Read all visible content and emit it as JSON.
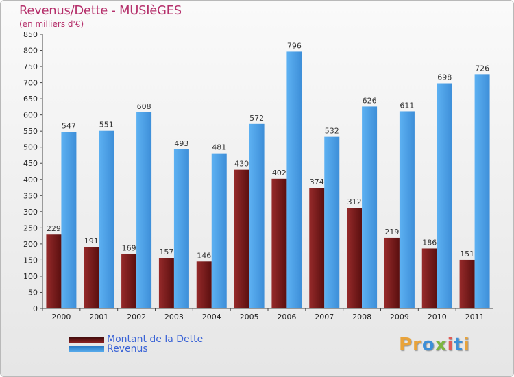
{
  "chart_data": {
    "type": "bar",
    "title": "Revenus/Dette - MUSIèGES",
    "subtitle": "(en milliers d'€)",
    "categories": [
      "2000",
      "2001",
      "2002",
      "2003",
      "2004",
      "2005",
      "2006",
      "2007",
      "2008",
      "2009",
      "2010",
      "2011"
    ],
    "series": [
      {
        "name": "Montant de la Dette",
        "color": "#7a1b1b",
        "values": [
          229,
          191,
          169,
          157,
          146,
          430,
          402,
          374,
          312,
          219,
          186,
          151
        ]
      },
      {
        "name": "Revenus",
        "color": "#4a9ee6",
        "values": [
          547,
          551,
          608,
          493,
          481,
          572,
          796,
          532,
          626,
          611,
          698,
          726
        ]
      }
    ],
    "ylim": [
      0,
      850
    ],
    "yticks": [
      0,
      50,
      100,
      150,
      200,
      250,
      300,
      350,
      400,
      450,
      500,
      550,
      600,
      650,
      700,
      750,
      800,
      850
    ],
    "grid": false,
    "legend_position": "bottom-left"
  },
  "logo": {
    "text": "Proxiti",
    "p1": "Pr",
    "o": "o",
    "x": "x",
    "i1": "i",
    "t": "t",
    "i2": "i"
  }
}
